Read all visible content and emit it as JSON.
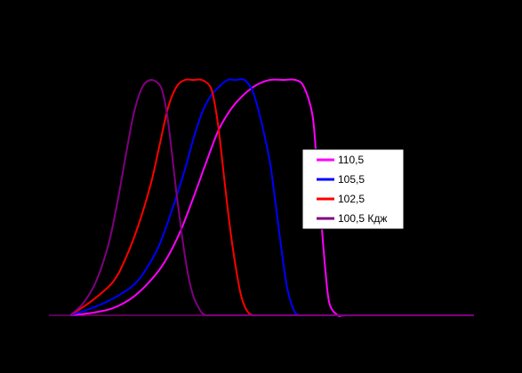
{
  "chart_data": {
    "type": "line",
    "title": "",
    "xlabel": "",
    "ylabel": "",
    "xlim": [
      0,
      100
    ],
    "ylim": [
      0,
      1
    ],
    "grid": false,
    "legend_position": "right",
    "background": "#000000",
    "axis_color": "#7a0070",
    "series": [
      {
        "name": "110,5",
        "color": "#ff00ff",
        "x": [
          5,
          10,
          15,
          20,
          25,
          28,
          31,
          34,
          37,
          40,
          43,
          46,
          49,
          52,
          55,
          58,
          60,
          62,
          63,
          64,
          65,
          66,
          68,
          70,
          80,
          100
        ],
        "y": [
          0,
          0.01,
          0.03,
          0.08,
          0.17,
          0.25,
          0.36,
          0.5,
          0.65,
          0.79,
          0.88,
          0.94,
          0.98,
          1.0,
          1.0,
          1.0,
          0.97,
          0.85,
          0.65,
          0.42,
          0.2,
          0.05,
          0,
          0,
          0,
          0
        ]
      },
      {
        "name": "105,5",
        "color": "#0000ff",
        "x": [
          5,
          10,
          15,
          20,
          23,
          26,
          29,
          32,
          34,
          36,
          38,
          40,
          42,
          44,
          46,
          48,
          50,
          52,
          53,
          54,
          55,
          56,
          57,
          58,
          59,
          60,
          62,
          70,
          100
        ],
        "y": [
          0,
          0.03,
          0.07,
          0.13,
          0.2,
          0.3,
          0.45,
          0.62,
          0.75,
          0.86,
          0.93,
          0.97,
          1.0,
          1.0,
          1.0,
          0.95,
          0.82,
          0.65,
          0.52,
          0.38,
          0.24,
          0.12,
          0.05,
          0.01,
          0,
          0,
          0,
          0,
          0
        ]
      },
      {
        "name": "102,5",
        "color": "#ff0000",
        "x": [
          5,
          10,
          15,
          18,
          21,
          24,
          26,
          28,
          30,
          32,
          34,
          36,
          38,
          39,
          40,
          41,
          42,
          43,
          44,
          45,
          46,
          47,
          48,
          49,
          50,
          52,
          60,
          100
        ],
        "y": [
          0,
          0.06,
          0.14,
          0.24,
          0.38,
          0.56,
          0.72,
          0.88,
          0.97,
          1.0,
          1.0,
          1.0,
          0.97,
          0.9,
          0.78,
          0.62,
          0.46,
          0.32,
          0.2,
          0.1,
          0.04,
          0.01,
          0,
          0,
          0,
          0,
          0,
          0
        ]
      },
      {
        "name": "100,5 Кдж",
        "color": "#800080",
        "x": [
          5,
          8,
          11,
          14,
          16,
          18,
          20,
          22,
          24,
          26,
          27,
          28,
          29,
          30,
          31,
          32,
          33,
          34,
          35,
          36,
          37,
          38,
          40,
          45,
          100
        ],
        "y": [
          0,
          0.05,
          0.14,
          0.3,
          0.47,
          0.67,
          0.86,
          0.97,
          1.0,
          0.98,
          0.93,
          0.83,
          0.68,
          0.52,
          0.38,
          0.25,
          0.15,
          0.08,
          0.04,
          0.01,
          0,
          0,
          0,
          0,
          0
        ]
      }
    ]
  }
}
